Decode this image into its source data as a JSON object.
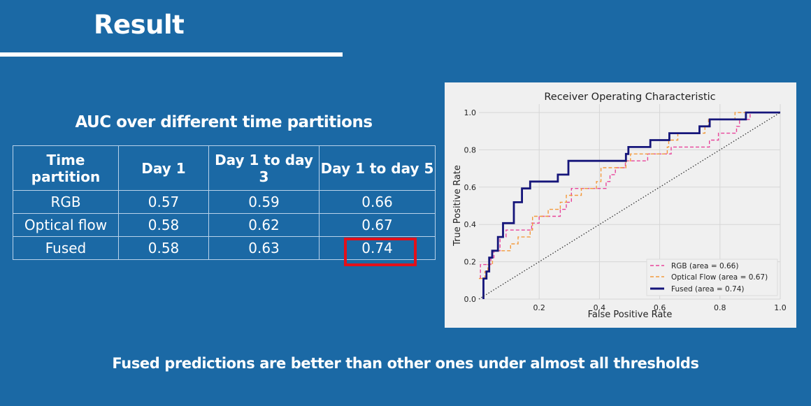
{
  "slide": {
    "title": "Result",
    "subtitle": "AUC over different time partitions",
    "footer": "Fused predictions are better than other ones under almost all thresholds",
    "background_color": "#1b69a5",
    "highlight_color": "#e3101a"
  },
  "table": {
    "headers": [
      "Time partition",
      "Day 1",
      "Day 1 to day 3",
      "Day 1 to day 5"
    ],
    "rows": [
      [
        "RGB",
        "0.57",
        "0.59",
        "0.66"
      ],
      [
        "Optical flow",
        "0.58",
        "0.62",
        "0.67"
      ],
      [
        "Fused",
        "0.58",
        "0.63",
        "0.74"
      ]
    ],
    "highlighted_cell": "Fused / Day 1 to day 5"
  },
  "chart_data": {
    "type": "line",
    "title": "Receiver Operating Characteristic",
    "xlabel": "False Positive Rate",
    "ylabel": "True Positive Rate",
    "xlim": [
      0,
      1
    ],
    "ylim": [
      0,
      1
    ],
    "xticks": [
      "0.2",
      "0.4",
      "0.6",
      "0.8",
      "1.0"
    ],
    "yticks": [
      "0.0",
      "0.2",
      "0.4",
      "0.6",
      "0.8",
      "1.0"
    ],
    "grid": true,
    "legend_position": "bottom-right",
    "series": [
      {
        "name": "RGB (area = 0.66)",
        "color": "#e8449a",
        "style": "dashed",
        "points": [
          [
            0.005,
            0.11
          ],
          [
            0.005,
            0.185
          ],
          [
            0.04,
            0.185
          ],
          [
            0.04,
            0.222
          ],
          [
            0.05,
            0.222
          ],
          [
            0.05,
            0.259
          ],
          [
            0.07,
            0.259
          ],
          [
            0.07,
            0.333
          ],
          [
            0.09,
            0.333
          ],
          [
            0.09,
            0.37
          ],
          [
            0.175,
            0.37
          ],
          [
            0.175,
            0.407
          ],
          [
            0.2,
            0.407
          ],
          [
            0.2,
            0.444
          ],
          [
            0.27,
            0.444
          ],
          [
            0.27,
            0.481
          ],
          [
            0.29,
            0.481
          ],
          [
            0.29,
            0.519
          ],
          [
            0.307,
            0.519
          ],
          [
            0.307,
            0.593
          ],
          [
            0.422,
            0.593
          ],
          [
            0.422,
            0.63
          ],
          [
            0.435,
            0.63
          ],
          [
            0.435,
            0.667
          ],
          [
            0.453,
            0.667
          ],
          [
            0.453,
            0.704
          ],
          [
            0.486,
            0.704
          ],
          [
            0.486,
            0.741
          ],
          [
            0.56,
            0.741
          ],
          [
            0.56,
            0.778
          ],
          [
            0.638,
            0.778
          ],
          [
            0.638,
            0.815
          ],
          [
            0.765,
            0.815
          ],
          [
            0.765,
            0.852
          ],
          [
            0.795,
            0.852
          ],
          [
            0.795,
            0.889
          ],
          [
            0.855,
            0.889
          ],
          [
            0.855,
            0.926
          ],
          [
            0.865,
            0.926
          ],
          [
            0.865,
            0.963
          ],
          [
            0.9,
            0.963
          ],
          [
            0.9,
            1.0
          ],
          [
            1.0,
            1.0
          ]
        ]
      },
      {
        "name": "Optical Flow (area = 0.67)",
        "color": "#f39a3c",
        "style": "dashed",
        "points": [
          [
            0.0,
            0.11
          ],
          [
            0.02,
            0.11
          ],
          [
            0.02,
            0.148
          ],
          [
            0.03,
            0.148
          ],
          [
            0.03,
            0.185
          ],
          [
            0.045,
            0.185
          ],
          [
            0.045,
            0.259
          ],
          [
            0.105,
            0.259
          ],
          [
            0.105,
            0.296
          ],
          [
            0.13,
            0.296
          ],
          [
            0.13,
            0.333
          ],
          [
            0.17,
            0.333
          ],
          [
            0.17,
            0.37
          ],
          [
            0.178,
            0.37
          ],
          [
            0.178,
            0.444
          ],
          [
            0.23,
            0.444
          ],
          [
            0.23,
            0.481
          ],
          [
            0.27,
            0.481
          ],
          [
            0.27,
            0.519
          ],
          [
            0.29,
            0.519
          ],
          [
            0.29,
            0.556
          ],
          [
            0.34,
            0.556
          ],
          [
            0.34,
            0.593
          ],
          [
            0.39,
            0.593
          ],
          [
            0.39,
            0.63
          ],
          [
            0.405,
            0.63
          ],
          [
            0.405,
            0.704
          ],
          [
            0.488,
            0.704
          ],
          [
            0.488,
            0.741
          ],
          [
            0.503,
            0.741
          ],
          [
            0.503,
            0.778
          ],
          [
            0.625,
            0.778
          ],
          [
            0.625,
            0.815
          ],
          [
            0.63,
            0.815
          ],
          [
            0.63,
            0.852
          ],
          [
            0.66,
            0.852
          ],
          [
            0.66,
            0.889
          ],
          [
            0.75,
            0.889
          ],
          [
            0.75,
            0.926
          ],
          [
            0.762,
            0.926
          ],
          [
            0.762,
            0.963
          ],
          [
            0.85,
            0.963
          ],
          [
            0.85,
            1.0
          ],
          [
            1.0,
            1.0
          ]
        ]
      },
      {
        "name": "Fused (area = 0.74)",
        "color": "#15157a",
        "style": "solid",
        "points": [
          [
            0.015,
            0
          ],
          [
            0.015,
            0.11
          ],
          [
            0.025,
            0.11
          ],
          [
            0.025,
            0.148
          ],
          [
            0.034,
            0.148
          ],
          [
            0.034,
            0.222
          ],
          [
            0.044,
            0.222
          ],
          [
            0.044,
            0.259
          ],
          [
            0.063,
            0.259
          ],
          [
            0.063,
            0.333
          ],
          [
            0.08,
            0.333
          ],
          [
            0.08,
            0.407
          ],
          [
            0.116,
            0.407
          ],
          [
            0.116,
            0.519
          ],
          [
            0.143,
            0.519
          ],
          [
            0.143,
            0.593
          ],
          [
            0.17,
            0.593
          ],
          [
            0.17,
            0.63
          ],
          [
            0.262,
            0.63
          ],
          [
            0.262,
            0.667
          ],
          [
            0.297,
            0.667
          ],
          [
            0.297,
            0.741
          ],
          [
            0.488,
            0.741
          ],
          [
            0.488,
            0.778
          ],
          [
            0.496,
            0.778
          ],
          [
            0.496,
            0.815
          ],
          [
            0.569,
            0.815
          ],
          [
            0.569,
            0.852
          ],
          [
            0.632,
            0.852
          ],
          [
            0.632,
            0.889
          ],
          [
            0.732,
            0.889
          ],
          [
            0.732,
            0.926
          ],
          [
            0.766,
            0.926
          ],
          [
            0.766,
            0.963
          ],
          [
            0.886,
            0.963
          ],
          [
            0.886,
            1.0
          ],
          [
            1.0,
            1.0
          ]
        ]
      },
      {
        "color": "#333333",
        "style": "dotted",
        "points": [
          [
            0,
            0
          ],
          [
            1,
            1
          ]
        ]
      }
    ]
  }
}
